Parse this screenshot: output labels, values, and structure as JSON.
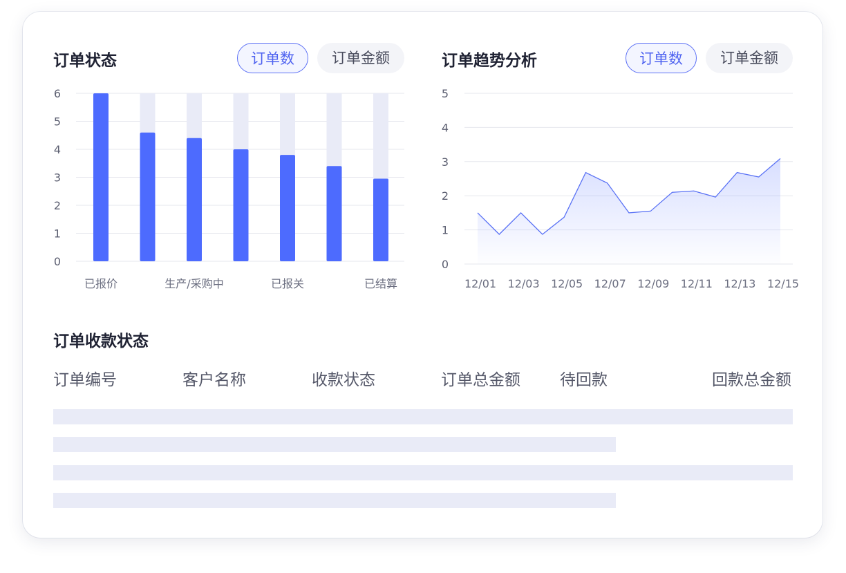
{
  "status_panel": {
    "title": "订单状态",
    "tabs": [
      {
        "label": "订单数",
        "active": true
      },
      {
        "label": "订单金额",
        "active": false
      }
    ]
  },
  "trend_panel": {
    "title": "订单趋势分析",
    "tabs": [
      {
        "label": "订单数",
        "active": true
      },
      {
        "label": "订单金额",
        "active": false
      }
    ]
  },
  "payment_panel": {
    "title": "订单收款状态",
    "columns": [
      "订单编号",
      "客户名称",
      "收款状态",
      "订单总金额",
      "待回款",
      "回款总金额"
    ]
  },
  "colors": {
    "accent": "#4d6bfe",
    "track": "#e9ebf7",
    "text": "#1f2233",
    "muted": "#6b6e80"
  },
  "chart_data": [
    {
      "type": "bar",
      "categories": [
        "已报价",
        "",
        "生产/采购中",
        "",
        "已报关",
        "",
        "已结算"
      ],
      "values": [
        6,
        4.6,
        4.4,
        4.0,
        3.8,
        3.4,
        2.95
      ],
      "yticks": [
        "0",
        "1",
        "2",
        "3",
        "4",
        "5",
        "6"
      ],
      "ylim": [
        0,
        6
      ],
      "grid": true
    },
    {
      "type": "area",
      "x": [
        "12/01",
        "12/02",
        "12/03",
        "12/04",
        "12/05",
        "12/06",
        "12/07",
        "12/08",
        "12/09",
        "12/10",
        "12/11",
        "12/12",
        "12/13",
        "12/14",
        "12/15"
      ],
      "xticks": [
        "12/01",
        "12/03",
        "12/05",
        "12/07",
        "12/09",
        "12/11",
        "12/13",
        "12/15"
      ],
      "values": [
        1.5,
        0.87,
        1.5,
        0.87,
        1.37,
        2.68,
        2.37,
        1.5,
        1.55,
        2.1,
        2.14,
        1.96,
        2.68,
        2.55,
        3.09
      ],
      "yticks": [
        "0",
        "1",
        "2",
        "3",
        "4",
        "5"
      ],
      "ylim": [
        0,
        5
      ],
      "grid": true
    }
  ]
}
